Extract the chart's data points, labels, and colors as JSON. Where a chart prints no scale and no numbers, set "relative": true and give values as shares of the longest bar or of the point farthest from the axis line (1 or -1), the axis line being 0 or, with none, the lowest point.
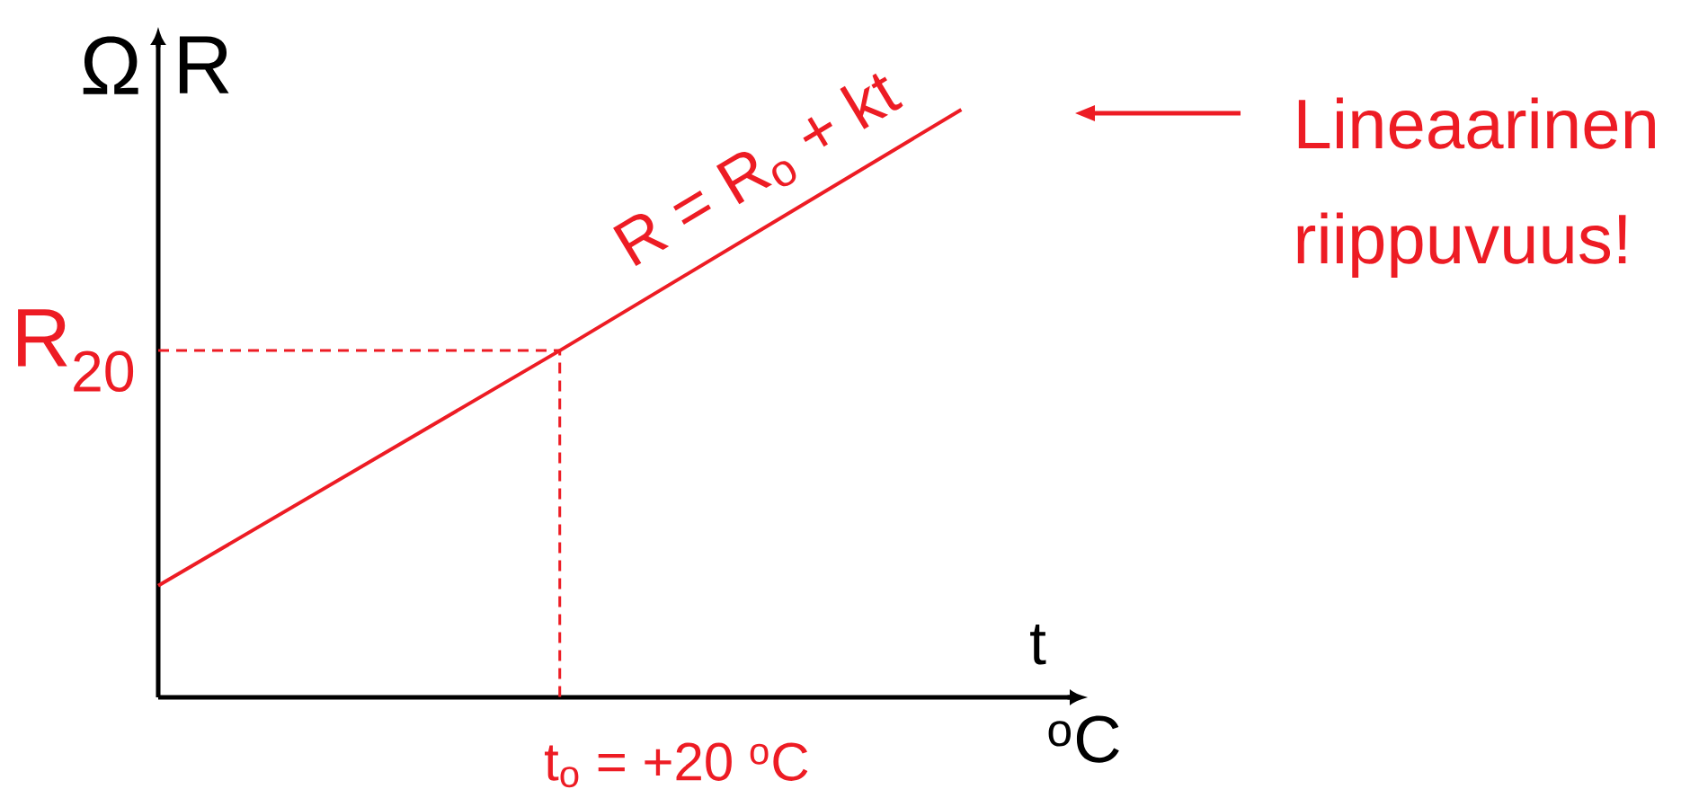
{
  "chart_data": {
    "type": "line",
    "relative": true,
    "categories": [
      null,
      null,
      null
    ],
    "series": [
      {
        "color": "#ed1c24",
        "values": [
          0.19,
          0.59,
          1
        ]
      }
    ],
    "xlabel": "t",
    "ylabel": "R",
    "ref_lines": [
      {
        "axis": "y",
        "value": 0.59,
        "label": "R$_{20}$",
        "color": "#ed1c24",
        "line_style": "dashed"
      }
    ],
    "annotations": [
      "R = R$_{o}$ + kt",
      "Lineaarinen riippuvuus!",
      "Ω",
      "$^{o}$C",
      "t$_{o}$ = +20 $^{o}$C"
    ]
  }
}
